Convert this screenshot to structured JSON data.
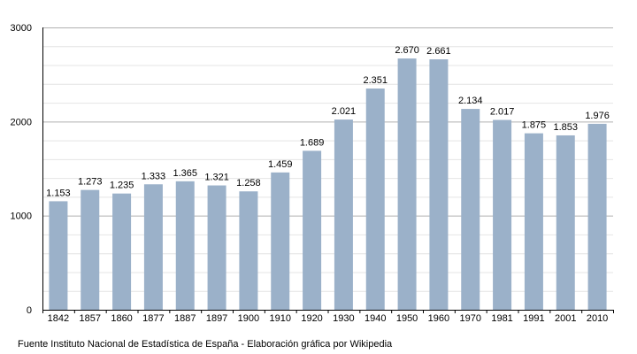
{
  "chart_data": {
    "type": "bar",
    "categories": [
      "1842",
      "1857",
      "1860",
      "1877",
      "1887",
      "1897",
      "1900",
      "1910",
      "1920",
      "1930",
      "1940",
      "1950",
      "1960",
      "1970",
      "1981",
      "1991",
      "2001",
      "2010"
    ],
    "values": [
      1153,
      1273,
      1235,
      1333,
      1365,
      1321,
      1258,
      1459,
      1689,
      2021,
      2351,
      2670,
      2661,
      2134,
      2017,
      1875,
      1853,
      1976
    ],
    "value_labels": [
      "1.153",
      "1.273",
      "1.235",
      "1.333",
      "1.365",
      "1.321",
      "1.258",
      "1.459",
      "1.689",
      "2.021",
      "2.351",
      "2.670",
      "2.661",
      "2.134",
      "2.017",
      "1.875",
      "1.853",
      "1.976"
    ],
    "y_ticks": [
      0,
      1000,
      2000,
      3000
    ],
    "ylim": [
      0,
      3000
    ],
    "grid": true,
    "title": "",
    "xlabel": "",
    "ylabel": "",
    "bar_color": "#9bb1c9",
    "grid_color": "#c8c8c8"
  },
  "footer": {
    "source_text": "Fuente Instituto Nacional de Estadística de España - Elaboración gráfica por Wikipedia"
  }
}
